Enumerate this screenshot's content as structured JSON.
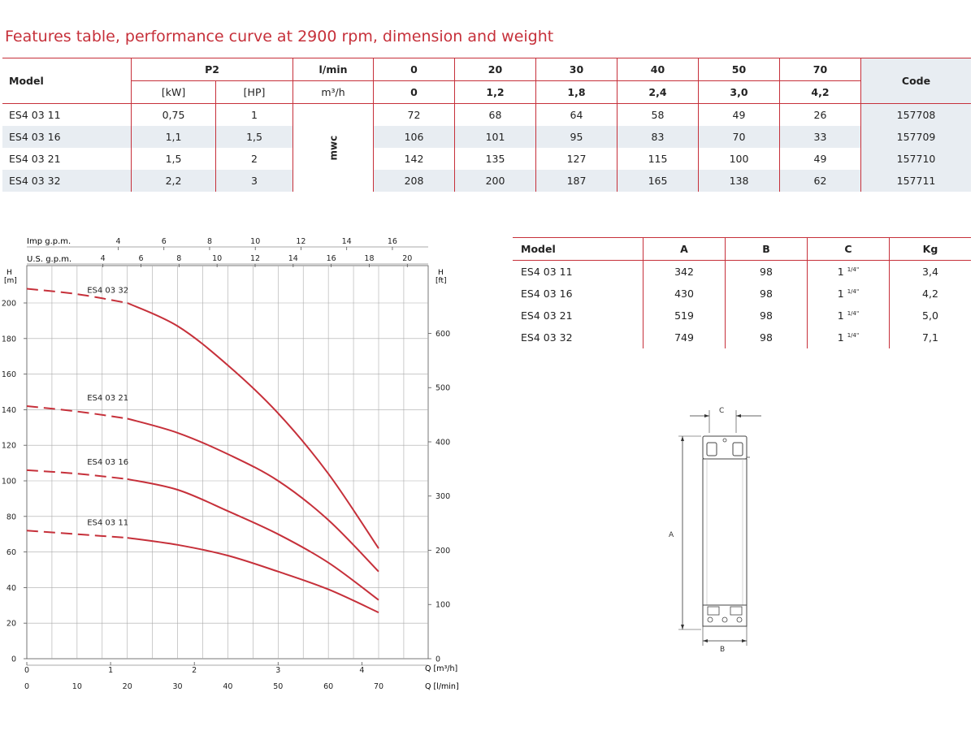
{
  "title": "Features table, performance curve at 2900 rpm, dimension and weight",
  "features": {
    "model_label": "Model",
    "p2_label": "P2",
    "kw_label": "[kW]",
    "hp_label": "[HP]",
    "lmin_label": "l/min",
    "m3h_label": "m³/h",
    "mwc_label": "mwc",
    "code_label": "Code",
    "flows_lmin": [
      "0",
      "20",
      "30",
      "40",
      "50",
      "70"
    ],
    "flows_m3h": [
      "0",
      "1,2",
      "1,8",
      "2,4",
      "3,0",
      "4,2"
    ],
    "rows": [
      {
        "model": "ES4 03 11",
        "kw": "0,75",
        "hp": "1",
        "h": [
          "72",
          "68",
          "64",
          "58",
          "49",
          "26"
        ],
        "code": "157708"
      },
      {
        "model": "ES4 03 16",
        "kw": "1,1",
        "hp": "1,5",
        "h": [
          "106",
          "101",
          "95",
          "83",
          "70",
          "33"
        ],
        "code": "157709"
      },
      {
        "model": "ES4 03 21",
        "kw": "1,5",
        "hp": "2",
        "h": [
          "142",
          "135",
          "127",
          "115",
          "100",
          "49"
        ],
        "code": "157710"
      },
      {
        "model": "ES4 03 32",
        "kw": "2,2",
        "hp": "3",
        "h": [
          "208",
          "200",
          "187",
          "165",
          "138",
          "62"
        ],
        "code": "157711"
      }
    ]
  },
  "dimensions": {
    "headers": [
      "Model",
      "A",
      "B",
      "C",
      "Kg"
    ],
    "c_prefix": "1",
    "c_sup": "1/4\"",
    "rows": [
      {
        "model": "ES4 03 11",
        "a": "342",
        "b": "98",
        "kg": "3,4"
      },
      {
        "model": "ES4 03 16",
        "a": "430",
        "b": "98",
        "kg": "4,2"
      },
      {
        "model": "ES4 03 21",
        "a": "519",
        "b": "98",
        "kg": "5,0"
      },
      {
        "model": "ES4 03 32",
        "a": "749",
        "b": "98",
        "kg": "7,1"
      }
    ]
  },
  "drawing_labels": {
    "a": "A",
    "b": "B",
    "c": "C"
  },
  "chart_data": {
    "type": "line",
    "x_unit_label": "Q [l/min]",
    "x2_unit_label": "Q [m³/h]",
    "y_label_left": "H",
    "y_unit_left": "[m]",
    "y_label_right": "H",
    "y_unit_right": "[ft]",
    "imp_label": "Imp g.p.m.",
    "us_label": "U.S. g.p.m.",
    "xlim": [
      0,
      70
    ],
    "ylim": [
      0,
      210
    ],
    "x_ticks_lmin": [
      0,
      10,
      20,
      30,
      40,
      50,
      60,
      70
    ],
    "x_ticks_m3h": [
      0,
      1,
      2,
      3,
      4
    ],
    "y_ticks_m": [
      0,
      20,
      40,
      60,
      80,
      100,
      120,
      140,
      160,
      180,
      200
    ],
    "y_ticks_ft": [
      0,
      100,
      200,
      300,
      400,
      500,
      600
    ],
    "imp_ticks": [
      4,
      6,
      8,
      10,
      12,
      14,
      16
    ],
    "us_ticks": [
      4,
      6,
      8,
      10,
      12,
      14,
      16,
      18,
      20
    ],
    "series": [
      {
        "name": "ES4 03 32",
        "x": [
          0,
          10,
          20,
          30,
          40,
          50,
          60,
          70
        ],
        "y": [
          208,
          205,
          200,
          187,
          165,
          138,
          104,
          62
        ]
      },
      {
        "name": "ES4 03 21",
        "x": [
          0,
          10,
          20,
          30,
          40,
          50,
          60,
          70
        ],
        "y": [
          142,
          139,
          135,
          127,
          115,
          100,
          78,
          49
        ]
      },
      {
        "name": "ES4 03 16",
        "x": [
          0,
          10,
          20,
          30,
          40,
          50,
          60,
          70
        ],
        "y": [
          106,
          104,
          101,
          95,
          83,
          70,
          54,
          33
        ]
      },
      {
        "name": "ES4 03 11",
        "x": [
          0,
          10,
          20,
          30,
          40,
          50,
          60,
          70
        ],
        "y": [
          72,
          70,
          68,
          64,
          58,
          49,
          39,
          26
        ]
      }
    ]
  }
}
